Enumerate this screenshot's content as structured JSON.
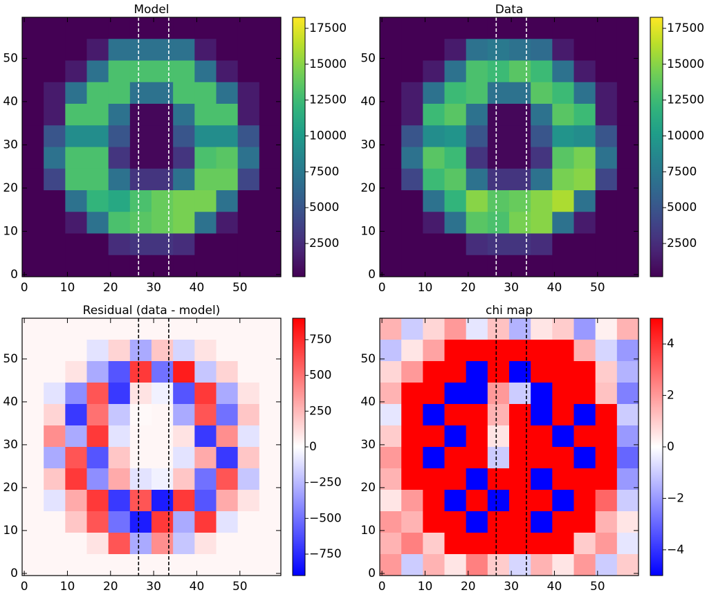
{
  "chart_data": [
    {
      "type": "heatmap",
      "title": "Model",
      "xlim": [
        -0.5,
        59.5
      ],
      "ylim": [
        -0.5,
        59.5
      ],
      "xticks": [
        0,
        10,
        20,
        30,
        40,
        50
      ],
      "yticks": [
        0,
        10,
        20,
        30,
        40,
        50
      ],
      "colormap": "viridis",
      "clim": [
        185,
        18270
      ],
      "cticks": [
        2500,
        5000,
        7500,
        10000,
        12500,
        15000,
        17500
      ],
      "vlines": [
        26.5,
        33.5
      ],
      "vline_color": "#ffffff",
      "z": [
        [
          200,
          200,
          200,
          200,
          200,
          200,
          200,
          200,
          200,
          200,
          200,
          200
        ],
        [
          200,
          200,
          200,
          1500,
          7000,
          7000,
          7000,
          7000,
          1500,
          200,
          200,
          200
        ],
        [
          200,
          200,
          1500,
          7000,
          13000,
          13000,
          13000,
          13000,
          7000,
          1500,
          200,
          200
        ],
        [
          200,
          1500,
          7000,
          13000,
          13000,
          7000,
          7000,
          13000,
          13000,
          7000,
          1500,
          200
        ],
        [
          200,
          1500,
          13000,
          13000,
          7000,
          500,
          500,
          7000,
          13000,
          13000,
          1500,
          200
        ],
        [
          200,
          5000,
          9000,
          9000,
          5000,
          500,
          500,
          5000,
          9000,
          9000,
          5000,
          200
        ],
        [
          200,
          7000,
          13000,
          13000,
          3000,
          500,
          500,
          3000,
          13000,
          13500,
          7000,
          200
        ],
        [
          200,
          4000,
          13000,
          13000,
          7000,
          3000,
          3000,
          7000,
          14000,
          14000,
          4000,
          200
        ],
        [
          200,
          200,
          7000,
          12000,
          11000,
          13000,
          14000,
          14500,
          14500,
          7000,
          200,
          200
        ],
        [
          200,
          200,
          1500,
          7000,
          13000,
          13500,
          14000,
          14500,
          7000,
          1500,
          200,
          200
        ],
        [
          200,
          200,
          200,
          200,
          2500,
          3000,
          3000,
          2500,
          200,
          200,
          200,
          200
        ],
        [
          200,
          200,
          200,
          200,
          200,
          200,
          200,
          200,
          200,
          200,
          200,
          200
        ]
      ]
    },
    {
      "type": "heatmap",
      "title": "Data",
      "xlim": [
        -0.5,
        59.5
      ],
      "ylim": [
        -0.5,
        59.5
      ],
      "xticks": [
        0,
        10,
        20,
        30,
        40,
        50
      ],
      "yticks": [
        0,
        10,
        20,
        30,
        40,
        50
      ],
      "colormap": "viridis",
      "clim": [
        185,
        18270
      ],
      "cticks": [
        2500,
        5000,
        7500,
        10000,
        12500,
        15000,
        17500
      ],
      "vlines": [
        26.5,
        33.5
      ],
      "vline_color": "#ffffff",
      "z": [
        [
          200,
          200,
          200,
          200,
          200,
          200,
          200,
          200,
          200,
          200,
          200,
          200
        ],
        [
          200,
          200,
          200,
          1500,
          7000,
          7500,
          7000,
          6500,
          1500,
          200,
          200,
          200
        ],
        [
          200,
          200,
          1500,
          7000,
          13000,
          12500,
          13500,
          12500,
          7000,
          1500,
          200,
          200
        ],
        [
          200,
          1500,
          7000,
          12500,
          13000,
          7000,
          7000,
          13500,
          12500,
          7000,
          1500,
          200
        ],
        [
          200,
          1500,
          12500,
          13500,
          7000,
          500,
          500,
          7000,
          13500,
          12500,
          1500,
          200
        ],
        [
          200,
          5000,
          9000,
          9500,
          5000,
          500,
          500,
          5000,
          9500,
          9000,
          5000,
          200
        ],
        [
          200,
          7000,
          13500,
          12500,
          3000,
          500,
          500,
          3000,
          13500,
          14500,
          7000,
          200
        ],
        [
          200,
          4000,
          12500,
          13500,
          7000,
          3000,
          3000,
          7000,
          14500,
          15000,
          4000,
          200
        ],
        [
          200,
          200,
          7000,
          12000,
          15000,
          13500,
          14000,
          15000,
          16000,
          7000,
          200,
          200
        ],
        [
          200,
          200,
          1500,
          7000,
          13500,
          13000,
          14500,
          15000,
          7000,
          1500,
          200,
          200
        ],
        [
          200,
          200,
          200,
          200,
          2500,
          3000,
          3000,
          2500,
          200,
          200,
          200,
          200
        ],
        [
          200,
          200,
          200,
          200,
          200,
          200,
          200,
          200,
          200,
          200,
          200,
          200
        ]
      ]
    },
    {
      "type": "heatmap",
      "title": "Residual (data - model)",
      "xlim": [
        -0.5,
        59.5
      ],
      "ylim": [
        -0.5,
        59.5
      ],
      "xticks": [
        0,
        10,
        20,
        30,
        40,
        50
      ],
      "yticks": [
        0,
        10,
        20,
        30,
        40,
        50
      ],
      "colormap": "bwr",
      "clim": [
        -900,
        900
      ],
      "cticks": [
        {
          "value": -750,
          "label": "−750"
        },
        {
          "value": -500,
          "label": "−500"
        },
        {
          "value": -250,
          "label": "−250"
        },
        0,
        250,
        500,
        750
      ],
      "vlines": [
        26.5,
        33.5
      ],
      "vline_color": "#000000",
      "z": [
        [
          30,
          30,
          30,
          30,
          30,
          30,
          30,
          30,
          30,
          30,
          30,
          30
        ],
        [
          30,
          30,
          30,
          -100,
          150,
          -300,
          200,
          -150,
          100,
          30,
          30,
          30
        ],
        [
          30,
          30,
          100,
          -300,
          -600,
          700,
          -500,
          800,
          -200,
          150,
          30,
          30
        ],
        [
          30,
          -100,
          -400,
          600,
          -700,
          100,
          -50,
          -600,
          700,
          -300,
          100,
          30
        ],
        [
          30,
          150,
          -700,
          500,
          -200,
          20,
          30,
          -300,
          600,
          -500,
          200,
          30
        ],
        [
          30,
          400,
          -300,
          700,
          -100,
          30,
          30,
          100,
          -700,
          400,
          -100,
          30
        ],
        [
          30,
          -300,
          600,
          -600,
          200,
          30,
          30,
          -100,
          300,
          -700,
          200,
          30
        ],
        [
          30,
          200,
          700,
          -400,
          300,
          -100,
          -50,
          200,
          -500,
          600,
          -200,
          30
        ],
        [
          30,
          -100,
          300,
          700,
          -700,
          600,
          -800,
          700,
          -600,
          300,
          100,
          30
        ],
        [
          30,
          30,
          200,
          600,
          -500,
          -800,
          700,
          -300,
          700,
          -100,
          30,
          30
        ],
        [
          30,
          30,
          30,
          100,
          600,
          -300,
          400,
          -200,
          100,
          30,
          30,
          30
        ],
        [
          30,
          30,
          30,
          30,
          30,
          30,
          30,
          30,
          30,
          30,
          30,
          30
        ]
      ]
    },
    {
      "type": "heatmap",
      "title": "chi map",
      "xlim": [
        -0.5,
        59.5
      ],
      "ylim": [
        -0.5,
        59.5
      ],
      "xticks": [
        0,
        10,
        20,
        30,
        40,
        50
      ],
      "yticks": [
        0,
        10,
        20,
        30,
        40,
        50
      ],
      "colormap": "bwr",
      "clim": [
        -5,
        5
      ],
      "cticks": [
        {
          "value": -4,
          "label": "−4"
        },
        {
          "value": -2,
          "label": "−2"
        },
        0,
        2,
        4
      ],
      "vlines": [
        26.5,
        33.5
      ],
      "vline_color": "#000000",
      "z": [
        [
          1.5,
          -1,
          0.8,
          2,
          -0.5,
          1.2,
          -1.5,
          0.5,
          1,
          -2,
          0.3,
          1.5
        ],
        [
          -1.2,
          0.5,
          1.8,
          5,
          5,
          5,
          5,
          5,
          5,
          1.5,
          -0.8,
          -2
        ],
        [
          0.8,
          2,
          5,
          5,
          -5,
          5,
          -5,
          5,
          5,
          5,
          1,
          -1.5
        ],
        [
          1.5,
          5,
          5,
          -5,
          -5,
          2,
          -1,
          -5,
          5,
          5,
          1.2,
          -2.5
        ],
        [
          -0.5,
          5,
          -5,
          5,
          5,
          1.5,
          5,
          -5,
          5,
          -5,
          5,
          -1
        ],
        [
          1,
          5,
          5,
          -5,
          5,
          0.5,
          5,
          5,
          -5,
          5,
          5,
          -2
        ],
        [
          2,
          5,
          -5,
          5,
          5,
          -1,
          5,
          5,
          5,
          -5,
          5,
          -3
        ],
        [
          1.5,
          5,
          5,
          5,
          -5,
          5,
          5,
          -5,
          5,
          5,
          5,
          -2
        ],
        [
          0.5,
          2,
          5,
          -5,
          5,
          -5,
          5,
          5,
          -5,
          5,
          3,
          -1
        ],
        [
          2,
          1.5,
          5,
          5,
          -5,
          5,
          5,
          -5,
          5,
          5,
          1.5,
          0.5
        ],
        [
          1.5,
          2.5,
          1,
          5,
          5,
          5,
          5,
          5,
          5,
          1,
          2,
          -0.5
        ],
        [
          2,
          -1,
          1.5,
          0.5,
          2.5,
          1,
          -0.8,
          1.5,
          0.5,
          2,
          -1,
          1
        ]
      ]
    }
  ]
}
